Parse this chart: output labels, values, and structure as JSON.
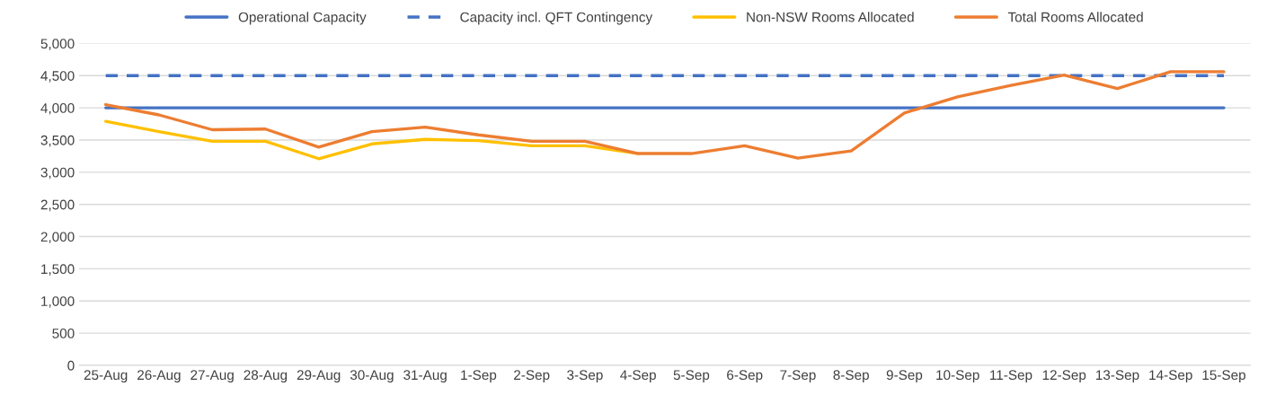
{
  "chart_data": {
    "type": "line",
    "categories": [
      "25-Aug",
      "26-Aug",
      "27-Aug",
      "28-Aug",
      "29-Aug",
      "30-Aug",
      "31-Aug",
      "1-Sep",
      "2-Sep",
      "3-Sep",
      "4-Sep",
      "5-Sep",
      "6-Sep",
      "7-Sep",
      "8-Sep",
      "9-Sep",
      "10-Sep",
      "11-Sep",
      "12-Sep",
      "13-Sep",
      "14-Sep",
      "15-Sep"
    ],
    "series": [
      {
        "name": "Operational Capacity",
        "color": "#4472c4",
        "line_style": "solid",
        "values": [
          4000,
          4000,
          4000,
          4000,
          4000,
          4000,
          4000,
          4000,
          4000,
          4000,
          4000,
          4000,
          4000,
          4000,
          4000,
          4000,
          4000,
          4000,
          4000,
          4000,
          4000,
          4000
        ]
      },
      {
        "name": "Capacity incl. QFT Contingency",
        "color": "#4472c4",
        "line_style": "dashed",
        "values": [
          4500,
          4500,
          4500,
          4500,
          4500,
          4500,
          4500,
          4500,
          4500,
          4500,
          4500,
          4500,
          4500,
          4500,
          4500,
          4500,
          4500,
          4500,
          4500,
          4500,
          4500,
          4500
        ]
      },
      {
        "name": "Non-NSW Rooms Allocated",
        "color": "#ffc000",
        "line_style": "solid",
        "values": [
          3790,
          3630,
          3480,
          3480,
          3210,
          3440,
          3510,
          3490,
          3410,
          3410,
          3290,
          null,
          null,
          null,
          null,
          null,
          null,
          null,
          null,
          null,
          null,
          null
        ]
      },
      {
        "name": "Total Rooms Allocated",
        "color": "#ed7d31",
        "line_style": "solid",
        "values": [
          4050,
          3890,
          3660,
          3670,
          3390,
          3630,
          3700,
          3580,
          3480,
          3480,
          3290,
          3290,
          3410,
          3220,
          3330,
          3920,
          4170,
          4350,
          4510,
          4300,
          4560,
          4560
        ]
      }
    ],
    "ylim": [
      0,
      5000
    ],
    "yticks": [
      0,
      {
        "value": 500,
        "label": "500"
      },
      {
        "value": 1000,
        "label": "1,000"
      },
      {
        "value": 1500,
        "label": "1,500"
      },
      {
        "value": 2000,
        "label": "2,000"
      },
      {
        "value": 2500,
        "label": "2,500"
      },
      {
        "value": 3000,
        "label": "3,000"
      },
      {
        "value": 3500,
        "label": "3,500"
      },
      {
        "value": 4000,
        "label": "4,000"
      },
      {
        "value": 4500,
        "label": "4,500"
      },
      {
        "value": 5000,
        "label": "5,000"
      }
    ],
    "grid": "y",
    "legend": "top",
    "marker": "none"
  }
}
